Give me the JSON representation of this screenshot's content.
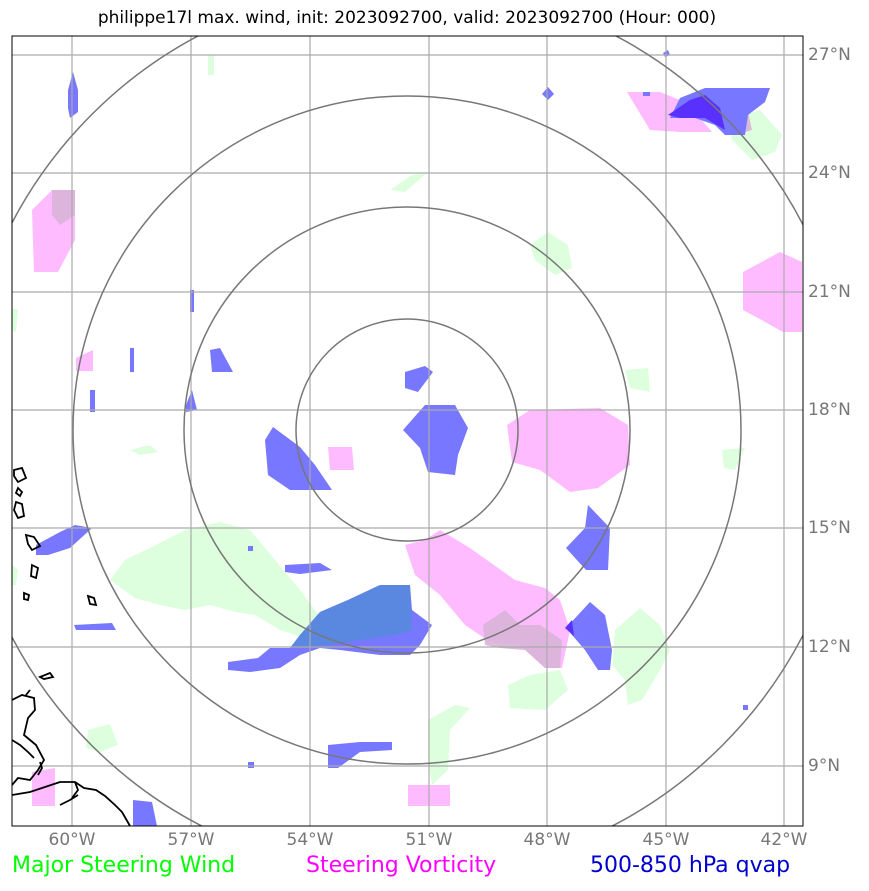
{
  "title": "philippe17l max. wind, init: 2023092700, valid: 2023092700 (Hour: 000)",
  "lat_labels": [
    "27°N",
    "24°N",
    "21°N",
    "18°N",
    "15°N",
    "12°N",
    "9°N"
  ],
  "lon_labels": [
    "60°W",
    "57°W",
    "54°W",
    "51°W",
    "48°W",
    "45°W",
    "42°W"
  ],
  "legend": {
    "wind": "Major Steering Wind",
    "vorticity": "Steering Vorticity",
    "qvap": "500-850 hPa qvap"
  },
  "colors": {
    "wind": "#00ff00",
    "vorticity": "#ff00ff",
    "qvap": "#0000cc",
    "wind_fill": "#ddffdd",
    "vorticity_fill": "#ffbbff",
    "qvap_fill": "#7777ff",
    "grid": "#aaaaaa",
    "rings": "#777777",
    "coast": "#000000"
  },
  "map": {
    "extent": {
      "lon_min": -61.5,
      "lon_max": -41.5,
      "lat_min": 7.5,
      "lat_max": 27.5
    },
    "storm_center": {
      "lon": -51.1,
      "lat": 17.5
    },
    "ring_radii_deg": [
      2.8,
      5.6,
      8.4,
      11.2
    ]
  }
}
